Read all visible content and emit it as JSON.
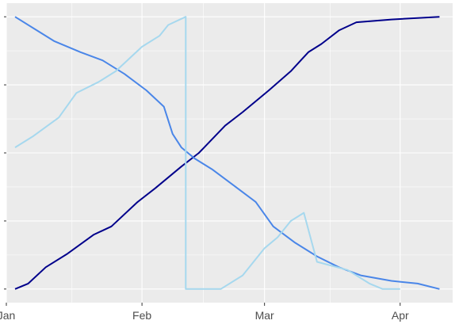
{
  "chart_data": {
    "type": "line",
    "title": "",
    "xlabel": "",
    "ylabel": "",
    "x_range": [
      "2022-01-01",
      "2022-04-13"
    ],
    "y_range": [
      -0.05,
      1.05
    ],
    "y_ticks": [
      0,
      0.25,
      0.5,
      0.75,
      1.0
    ],
    "x_ticks": [
      {
        "date": "2022-01-01",
        "label": "Jan"
      },
      {
        "date": "2022-02-01",
        "label": "Feb"
      },
      {
        "date": "2022-03-01",
        "label": "Mar"
      },
      {
        "date": "2022-04-01",
        "label": "Apr"
      }
    ],
    "x_minor_ticks": [
      "2022-01-16",
      "2022-02-15",
      "2022-03-16"
    ],
    "y_tick_labels_visible": false,
    "grid": true,
    "legend": "none",
    "colors": {
      "panel": "#ebebeb",
      "grid": "#ffffff",
      "axis_text": "#4d4d4d",
      "series": [
        "#00008b",
        "#4a86e8",
        "#a6d8ee"
      ]
    },
    "series": [
      {
        "color": "#00008b",
        "points": [
          [
            "2022-01-03",
            0.0
          ],
          [
            "2022-01-06",
            0.02
          ],
          [
            "2022-01-10",
            0.08
          ],
          [
            "2022-01-15",
            0.13
          ],
          [
            "2022-01-21",
            0.2
          ],
          [
            "2022-01-25",
            0.23
          ],
          [
            "2022-01-31",
            0.32
          ],
          [
            "2022-02-04",
            0.37
          ],
          [
            "2022-02-10",
            0.45
          ],
          [
            "2022-02-14",
            0.5
          ],
          [
            "2022-02-20",
            0.6
          ],
          [
            "2022-02-24",
            0.65
          ],
          [
            "2022-03-02",
            0.73
          ],
          [
            "2022-03-07",
            0.8
          ],
          [
            "2022-03-11",
            0.87
          ],
          [
            "2022-03-14",
            0.9
          ],
          [
            "2022-03-18",
            0.95
          ],
          [
            "2022-03-22",
            0.98
          ],
          [
            "2022-03-30",
            0.99
          ],
          [
            "2022-04-10",
            1.0
          ]
        ]
      },
      {
        "color": "#4a86e8",
        "points": [
          [
            "2022-01-03",
            1.0
          ],
          [
            "2022-01-08",
            0.95
          ],
          [
            "2022-01-12",
            0.91
          ],
          [
            "2022-01-18",
            0.87
          ],
          [
            "2022-01-23",
            0.84
          ],
          [
            "2022-01-28",
            0.79
          ],
          [
            "2022-02-02",
            0.73
          ],
          [
            "2022-02-06",
            0.67
          ],
          [
            "2022-02-08",
            0.57
          ],
          [
            "2022-02-10",
            0.52
          ],
          [
            "2022-02-13",
            0.48
          ],
          [
            "2022-02-17",
            0.44
          ],
          [
            "2022-02-22",
            0.38
          ],
          [
            "2022-02-27",
            0.32
          ],
          [
            "2022-03-03",
            0.23
          ],
          [
            "2022-03-08",
            0.17
          ],
          [
            "2022-03-13",
            0.12
          ],
          [
            "2022-03-18",
            0.08
          ],
          [
            "2022-03-23",
            0.05
          ],
          [
            "2022-03-30",
            0.03
          ],
          [
            "2022-04-05",
            0.02
          ],
          [
            "2022-04-10",
            0.0
          ]
        ]
      },
      {
        "color": "#a6d8ee",
        "points": [
          [
            "2022-01-03",
            0.52
          ],
          [
            "2022-01-07",
            0.56
          ],
          [
            "2022-01-13",
            0.63
          ],
          [
            "2022-01-17",
            0.72
          ],
          [
            "2022-01-22",
            0.76
          ],
          [
            "2022-01-26",
            0.8
          ],
          [
            "2022-02-01",
            0.89
          ],
          [
            "2022-02-05",
            0.93
          ],
          [
            "2022-02-07",
            0.97
          ],
          [
            "2022-02-11",
            1.0
          ],
          [
            "2022-02-11",
            0.0
          ],
          [
            "2022-02-19",
            0.0
          ],
          [
            "2022-02-24",
            0.05
          ],
          [
            "2022-03-01",
            0.15
          ],
          [
            "2022-03-04",
            0.19
          ],
          [
            "2022-03-07",
            0.25
          ],
          [
            "2022-03-10",
            0.28
          ],
          [
            "2022-03-13",
            0.1
          ],
          [
            "2022-03-20",
            0.07
          ],
          [
            "2022-03-25",
            0.02
          ],
          [
            "2022-03-28",
            0.0
          ],
          [
            "2022-04-01",
            0.0
          ]
        ]
      }
    ]
  }
}
